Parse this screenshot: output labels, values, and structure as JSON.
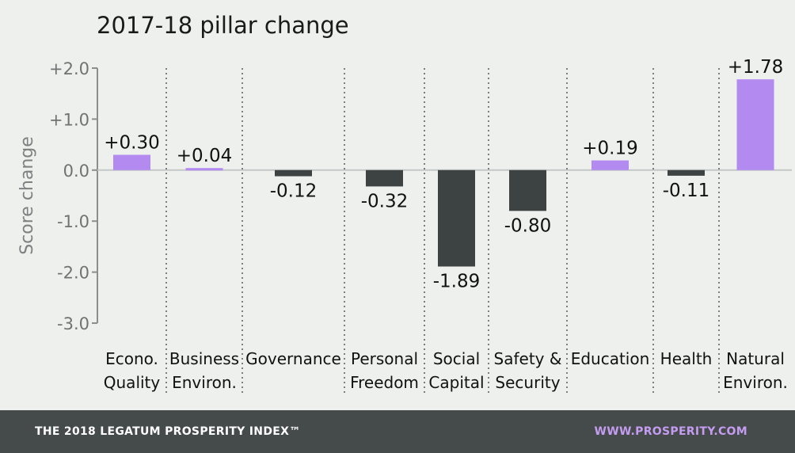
{
  "chart_data": {
    "type": "bar",
    "title": "2017-18 pillar change",
    "ylabel": "Score change",
    "ylim": [
      -3.0,
      2.0
    ],
    "yticks": [
      "+2.0",
      "+1.0",
      "0.0",
      "-1.0",
      "-2.0",
      "-3.0"
    ],
    "ytick_values": [
      2.0,
      1.0,
      0.0,
      -1.0,
      -2.0,
      -3.0
    ],
    "grid": false,
    "categories": [
      [
        "Econo.",
        "Quality"
      ],
      [
        "Business",
        "Environ."
      ],
      [
        "Governance"
      ],
      [
        "Personal",
        "Freedom"
      ],
      [
        "Social",
        "Capital"
      ],
      [
        "Safety &",
        "Security"
      ],
      [
        "Education"
      ],
      [
        "Health"
      ],
      [
        "Natural",
        "Environ."
      ]
    ],
    "values": [
      0.3,
      0.04,
      -0.12,
      -0.32,
      -1.89,
      -0.8,
      0.19,
      -0.11,
      1.78
    ],
    "data_labels": [
      "+0.30",
      "+0.04",
      "-0.12",
      "-0.32",
      "-1.89",
      "-0.80",
      "+0.19",
      "-0.11",
      "+1.78"
    ],
    "colors": {
      "positive": "#b28af0",
      "negative": "#3d4242",
      "axis": "#8a8e8e",
      "separator": "#555a5a"
    }
  },
  "footer": {
    "left": "THE 2018 LEGATUM PROSPERITY INDEX™",
    "right": "WWW.PROSPERITY.COM"
  }
}
